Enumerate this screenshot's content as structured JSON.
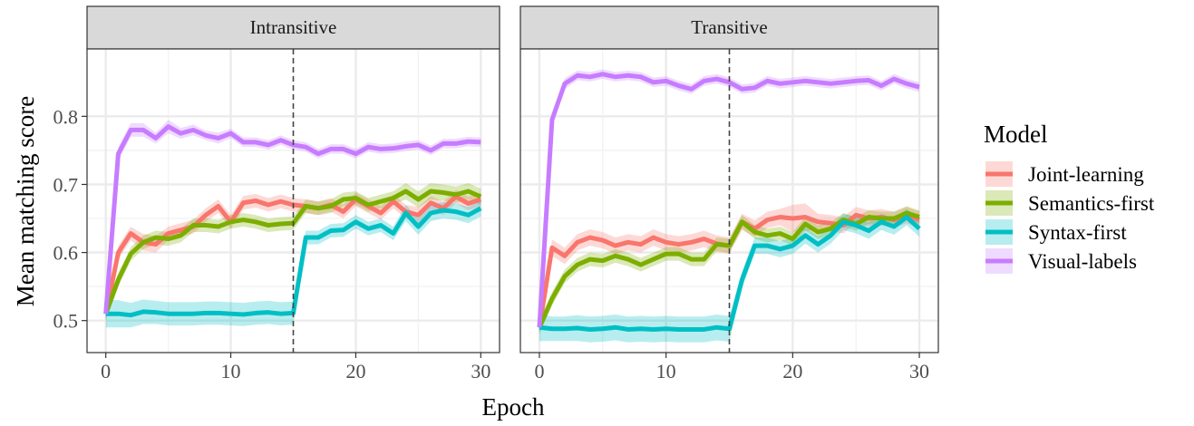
{
  "chart_data": {
    "type": "line",
    "xlabel": "Epoch",
    "ylabel": "Mean matching score",
    "xlim": [
      -1.5,
      31.5
    ],
    "ylim": [
      0.453,
      0.899
    ],
    "xticks": [
      0,
      10,
      20,
      30
    ],
    "yticks": [
      0.5,
      0.6,
      0.7,
      0.8
    ],
    "ytick_labels": [
      "0.5",
      "0.6",
      "0.7",
      "0.8"
    ],
    "grid": true,
    "vline_x": 15,
    "legend": {
      "title": "Model",
      "placement": "right"
    },
    "panels": [
      {
        "title": "Intransitive",
        "series": [
          {
            "name": "Joint-learning",
            "color": "#F8766D",
            "values": [
              0.51,
              0.6,
              0.628,
              0.615,
              0.612,
              0.628,
              0.633,
              0.638,
              0.655,
              0.668,
              0.645,
              0.673,
              0.676,
              0.67,
              0.675,
              0.67,
              0.668,
              0.665,
              0.67,
              0.66,
              0.678,
              0.668,
              0.658,
              0.675,
              0.66,
              0.655,
              0.673,
              0.665,
              0.682,
              0.672,
              0.678
            ],
            "lower": [
              0.5,
              0.59,
              0.618,
              0.603,
              0.6,
              0.618,
              0.623,
              0.628,
              0.645,
              0.658,
              0.635,
              0.663,
              0.666,
              0.66,
              0.665,
              0.66,
              0.658,
              0.655,
              0.66,
              0.65,
              0.668,
              0.658,
              0.648,
              0.665,
              0.65,
              0.643,
              0.663,
              0.655,
              0.672,
              0.662,
              0.668
            ],
            "upper": [
              0.52,
              0.61,
              0.638,
              0.627,
              0.624,
              0.638,
              0.643,
              0.648,
              0.665,
              0.678,
              0.655,
              0.683,
              0.686,
              0.68,
              0.685,
              0.68,
              0.678,
              0.675,
              0.68,
              0.67,
              0.688,
              0.678,
              0.668,
              0.685,
              0.67,
              0.667,
              0.683,
              0.675,
              0.692,
              0.682,
              0.688
            ]
          },
          {
            "name": "Semantics-first",
            "color": "#7CAE00",
            "values": [
              0.51,
              0.56,
              0.598,
              0.615,
              0.622,
              0.62,
              0.625,
              0.64,
              0.64,
              0.638,
              0.645,
              0.648,
              0.645,
              0.64,
              0.642,
              0.643,
              0.668,
              0.665,
              0.668,
              0.678,
              0.68,
              0.67,
              0.675,
              0.68,
              0.69,
              0.678,
              0.69,
              0.688,
              0.685,
              0.69,
              0.682
            ],
            "lower": [
              0.5,
              0.55,
              0.588,
              0.605,
              0.612,
              0.61,
              0.615,
              0.63,
              0.63,
              0.628,
              0.635,
              0.638,
              0.635,
              0.63,
              0.632,
              0.633,
              0.658,
              0.655,
              0.658,
              0.668,
              0.67,
              0.66,
              0.665,
              0.67,
              0.678,
              0.666,
              0.678,
              0.676,
              0.673,
              0.678,
              0.67
            ],
            "upper": [
              0.52,
              0.57,
              0.608,
              0.625,
              0.632,
              0.63,
              0.635,
              0.65,
              0.65,
              0.648,
              0.655,
              0.658,
              0.655,
              0.65,
              0.652,
              0.653,
              0.678,
              0.675,
              0.678,
              0.688,
              0.69,
              0.68,
              0.685,
              0.69,
              0.702,
              0.69,
              0.702,
              0.7,
              0.697,
              0.702,
              0.694
            ]
          },
          {
            "name": "Syntax-first",
            "color": "#00BFC4",
            "values": [
              0.51,
              0.51,
              0.508,
              0.513,
              0.512,
              0.51,
              0.51,
              0.51,
              0.511,
              0.511,
              0.51,
              0.509,
              0.511,
              0.512,
              0.51,
              0.511,
              0.622,
              0.622,
              0.632,
              0.633,
              0.645,
              0.635,
              0.64,
              0.628,
              0.658,
              0.638,
              0.658,
              0.662,
              0.66,
              0.655,
              0.665
            ],
            "lower": [
              0.49,
              0.49,
              0.49,
              0.495,
              0.495,
              0.493,
              0.493,
              0.493,
              0.494,
              0.494,
              0.493,
              0.492,
              0.494,
              0.495,
              0.493,
              0.494,
              0.612,
              0.612,
              0.622,
              0.623,
              0.635,
              0.625,
              0.63,
              0.618,
              0.646,
              0.626,
              0.646,
              0.65,
              0.648,
              0.643,
              0.653
            ],
            "upper": [
              0.53,
              0.53,
              0.526,
              0.531,
              0.529,
              0.527,
              0.527,
              0.527,
              0.528,
              0.528,
              0.527,
              0.526,
              0.528,
              0.529,
              0.527,
              0.528,
              0.632,
              0.632,
              0.642,
              0.643,
              0.655,
              0.645,
              0.65,
              0.638,
              0.67,
              0.65,
              0.67,
              0.674,
              0.672,
              0.667,
              0.677
            ]
          },
          {
            "name": "Visual-labels",
            "color": "#C77CFF",
            "values": [
              0.51,
              0.745,
              0.78,
              0.78,
              0.768,
              0.785,
              0.775,
              0.78,
              0.772,
              0.768,
              0.775,
              0.762,
              0.762,
              0.758,
              0.765,
              0.758,
              0.755,
              0.745,
              0.752,
              0.752,
              0.745,
              0.755,
              0.752,
              0.753,
              0.756,
              0.758,
              0.75,
              0.76,
              0.76,
              0.763,
              0.762
            ],
            "lower": [
              0.5,
              0.735,
              0.77,
              0.77,
              0.76,
              0.775,
              0.767,
              0.772,
              0.765,
              0.76,
              0.768,
              0.755,
              0.755,
              0.751,
              0.758,
              0.751,
              0.748,
              0.738,
              0.745,
              0.745,
              0.738,
              0.748,
              0.745,
              0.746,
              0.749,
              0.751,
              0.743,
              0.753,
              0.753,
              0.756,
              0.755
            ],
            "upper": [
              0.52,
              0.755,
              0.79,
              0.79,
              0.776,
              0.795,
              0.783,
              0.788,
              0.779,
              0.776,
              0.782,
              0.769,
              0.769,
              0.765,
              0.772,
              0.765,
              0.762,
              0.752,
              0.759,
              0.759,
              0.752,
              0.762,
              0.759,
              0.76,
              0.763,
              0.765,
              0.757,
              0.767,
              0.767,
              0.77,
              0.769
            ]
          }
        ]
      },
      {
        "title": "Transitive",
        "series": [
          {
            "name": "Joint-learning",
            "color": "#F8766D",
            "values": [
              0.49,
              0.607,
              0.595,
              0.615,
              0.622,
              0.618,
              0.61,
              0.615,
              0.612,
              0.622,
              0.615,
              0.612,
              0.615,
              0.62,
              0.613,
              0.61,
              0.645,
              0.635,
              0.648,
              0.652,
              0.65,
              0.652,
              0.645,
              0.643,
              0.64,
              0.655,
              0.65,
              0.652,
              0.648,
              0.655,
              0.648
            ],
            "lower": [
              0.48,
              0.595,
              0.583,
              0.603,
              0.61,
              0.606,
              0.598,
              0.603,
              0.6,
              0.61,
              0.603,
              0.6,
              0.603,
              0.608,
              0.601,
              0.598,
              0.633,
              0.623,
              0.636,
              0.64,
              0.63,
              0.632,
              0.633,
              0.631,
              0.628,
              0.643,
              0.638,
              0.64,
              0.636,
              0.643,
              0.636
            ],
            "upper": [
              0.5,
              0.619,
              0.607,
              0.627,
              0.634,
              0.63,
              0.622,
              0.627,
              0.624,
              0.634,
              0.627,
              0.624,
              0.627,
              0.632,
              0.625,
              0.622,
              0.657,
              0.647,
              0.66,
              0.664,
              0.67,
              0.672,
              0.657,
              0.655,
              0.652,
              0.667,
              0.662,
              0.664,
              0.66,
              0.667,
              0.66
            ]
          },
          {
            "name": "Semantics-first",
            "color": "#7CAE00",
            "values": [
              0.49,
              0.532,
              0.565,
              0.582,
              0.59,
              0.588,
              0.595,
              0.59,
              0.582,
              0.59,
              0.598,
              0.598,
              0.59,
              0.59,
              0.612,
              0.61,
              0.645,
              0.63,
              0.625,
              0.628,
              0.62,
              0.642,
              0.63,
              0.635,
              0.648,
              0.642,
              0.652,
              0.65,
              0.65,
              0.658,
              0.652
            ],
            "lower": [
              0.48,
              0.522,
              0.555,
              0.572,
              0.58,
              0.578,
              0.585,
              0.58,
              0.572,
              0.58,
              0.588,
              0.588,
              0.58,
              0.58,
              0.602,
              0.6,
              0.635,
              0.62,
              0.615,
              0.618,
              0.61,
              0.632,
              0.62,
              0.625,
              0.638,
              0.632,
              0.642,
              0.64,
              0.64,
              0.648,
              0.642
            ],
            "upper": [
              0.5,
              0.542,
              0.575,
              0.592,
              0.6,
              0.598,
              0.605,
              0.6,
              0.592,
              0.6,
              0.608,
              0.608,
              0.6,
              0.6,
              0.622,
              0.62,
              0.655,
              0.64,
              0.635,
              0.638,
              0.63,
              0.652,
              0.64,
              0.645,
              0.658,
              0.652,
              0.662,
              0.66,
              0.66,
              0.668,
              0.662
            ]
          },
          {
            "name": "Syntax-first",
            "color": "#00BFC4",
            "values": [
              0.49,
              0.488,
              0.488,
              0.489,
              0.487,
              0.488,
              0.49,
              0.487,
              0.488,
              0.487,
              0.488,
              0.487,
              0.487,
              0.487,
              0.49,
              0.488,
              0.56,
              0.61,
              0.61,
              0.605,
              0.61,
              0.625,
              0.612,
              0.625,
              0.645,
              0.64,
              0.632,
              0.645,
              0.638,
              0.652,
              0.635
            ],
            "lower": [
              0.47,
              0.47,
              0.47,
              0.47,
              0.468,
              0.469,
              0.471,
              0.468,
              0.469,
              0.468,
              0.469,
              0.468,
              0.468,
              0.468,
              0.471,
              0.469,
              0.548,
              0.598,
              0.598,
              0.593,
              0.598,
              0.613,
              0.6,
              0.613,
              0.633,
              0.628,
              0.62,
              0.633,
              0.626,
              0.64,
              0.623
            ],
            "upper": [
              0.51,
              0.506,
              0.506,
              0.508,
              0.506,
              0.507,
              0.509,
              0.506,
              0.507,
              0.506,
              0.507,
              0.506,
              0.506,
              0.506,
              0.509,
              0.507,
              0.572,
              0.622,
              0.622,
              0.617,
              0.622,
              0.637,
              0.624,
              0.637,
              0.657,
              0.652,
              0.644,
              0.657,
              0.65,
              0.664,
              0.647
            ]
          },
          {
            "name": "Visual-labels",
            "color": "#C77CFF",
            "values": [
              0.49,
              0.795,
              0.848,
              0.86,
              0.858,
              0.862,
              0.858,
              0.86,
              0.858,
              0.85,
              0.852,
              0.845,
              0.84,
              0.852,
              0.855,
              0.85,
              0.84,
              0.842,
              0.852,
              0.848,
              0.85,
              0.852,
              0.85,
              0.848,
              0.85,
              0.852,
              0.853,
              0.845,
              0.855,
              0.848,
              0.843
            ],
            "lower": [
              0.48,
              0.785,
              0.84,
              0.853,
              0.851,
              0.855,
              0.851,
              0.853,
              0.851,
              0.843,
              0.845,
              0.838,
              0.833,
              0.845,
              0.848,
              0.843,
              0.833,
              0.835,
              0.845,
              0.841,
              0.843,
              0.845,
              0.843,
              0.841,
              0.843,
              0.845,
              0.846,
              0.838,
              0.848,
              0.841,
              0.836
            ],
            "upper": [
              0.5,
              0.805,
              0.856,
              0.867,
              0.865,
              0.869,
              0.865,
              0.867,
              0.865,
              0.857,
              0.859,
              0.852,
              0.847,
              0.859,
              0.862,
              0.857,
              0.847,
              0.849,
              0.859,
              0.855,
              0.857,
              0.859,
              0.857,
              0.855,
              0.857,
              0.859,
              0.86,
              0.852,
              0.862,
              0.855,
              0.85
            ]
          }
        ]
      }
    ]
  }
}
